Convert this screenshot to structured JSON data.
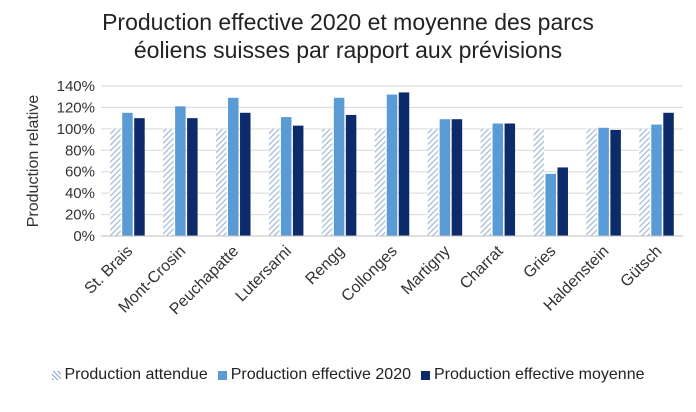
{
  "colors": {
    "expected": "#9fb8d6",
    "effective2020": "#5b9bd5",
    "average": "#0d2a6b",
    "axis_text": "#333333",
    "grid": "#d9d9d9"
  },
  "chart_data": {
    "type": "bar",
    "title_lines": [
      "Production effective 2020 et moyenne des parcs",
      "éoliens suisses par rapport aux prévisions"
    ],
    "xlabel": "",
    "ylabel": "Production relative",
    "ylim": [
      0,
      140
    ],
    "yticks": [
      0,
      20,
      40,
      60,
      80,
      100,
      120,
      140
    ],
    "ytick_labels": [
      "0%",
      "20%",
      "40%",
      "60%",
      "80%",
      "100%",
      "120%",
      "140%"
    ],
    "grid": true,
    "legend_position": "bottom",
    "categories": [
      "St. Brais",
      "Mont-Crosin",
      "Peuchapatte",
      "Lutersarni",
      "Rengg",
      "Collonges",
      "Martigny",
      "Charrat",
      "Gries",
      "Haldenstein",
      "Gütsch"
    ],
    "series": [
      {
        "name": "Production attendue",
        "color_key": "expected",
        "pattern": "hatched",
        "values": [
          100,
          100,
          100,
          100,
          100,
          100,
          100,
          100,
          100,
          100,
          100
        ]
      },
      {
        "name": "Production effective 2020",
        "color_key": "effective2020",
        "values": [
          115,
          121,
          129,
          111,
          129,
          132,
          109,
          105,
          58,
          101,
          104
        ]
      },
      {
        "name": "Production effective moyenne",
        "color_key": "average",
        "values": [
          110,
          110,
          115,
          103,
          113,
          134,
          109,
          105,
          64,
          99,
          115
        ]
      }
    ]
  }
}
